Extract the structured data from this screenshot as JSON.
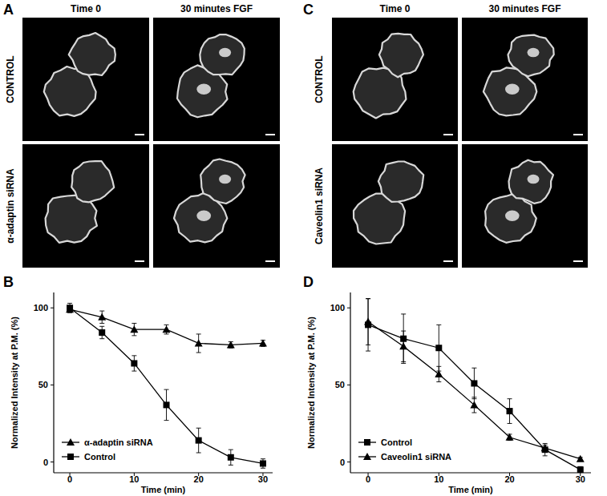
{
  "panels": [
    {
      "label": "A",
      "columns": [
        "Time 0",
        "30 minutes FGF"
      ],
      "rows": [
        "CONTROL",
        "α-adaptin siRNA"
      ]
    },
    {
      "label": "C",
      "columns": [
        "Time 0",
        "30 minutes FGF"
      ],
      "rows": [
        "CONTROL",
        "Caveolin1 siRNA"
      ]
    }
  ],
  "chart_data": [
    {
      "type": "line",
      "title": "B",
      "x_label": "Time (min)",
      "y_label": "Normalized Intensity at P.M. (%)",
      "x": [
        0,
        5,
        10,
        15,
        20,
        25,
        30
      ],
      "series": [
        {
          "name": "α-adaptin siRNA",
          "color": "#000000",
          "marker": "triangle",
          "line_style": "solid",
          "values": [
            99,
            94,
            86,
            86,
            77,
            76,
            77
          ],
          "errors": [
            2,
            4,
            4,
            3,
            6,
            2,
            2
          ]
        },
        {
          "name": "Control",
          "color": "#000000",
          "marker": "square",
          "line_style": "solid",
          "values": [
            100,
            84,
            64,
            37,
            14,
            3,
            -1
          ],
          "errors": [
            3,
            4,
            5,
            10,
            8,
            5,
            3
          ]
        }
      ],
      "xlim": [
        -2.5,
        31.5
      ],
      "xticks": [
        0,
        10,
        20,
        30
      ],
      "ylim": [
        -7,
        110
      ],
      "yticks": [
        0,
        50,
        100
      ],
      "grid": false,
      "legend": "lower left"
    },
    {
      "type": "line",
      "title": "D",
      "x_label": "Time (min)",
      "y_label": "Normalized Intensity at P.M. (%)",
      "x": [
        0,
        5,
        10,
        15,
        20,
        25,
        30
      ],
      "series": [
        {
          "name": "Control",
          "color": "#000000",
          "marker": "square",
          "line_style": "solid",
          "values": [
            89,
            80,
            74,
            51,
            33,
            8,
            -5
          ],
          "errors": [
            17,
            16,
            15,
            10,
            8,
            4,
            2
          ]
        },
        {
          "name": "Caveolin1 siRNA",
          "color": "#000000",
          "marker": "triangle",
          "line_style": "solid",
          "values": [
            91,
            75,
            57,
            37,
            16,
            9,
            2
          ],
          "errors": [
            15,
            10,
            5,
            5,
            2,
            2,
            1
          ]
        }
      ],
      "xlim": [
        -2.5,
        31.5
      ],
      "xticks": [
        0,
        10,
        20,
        30
      ],
      "ylim": [
        -7,
        110
      ],
      "yticks": [
        0,
        50,
        100
      ],
      "grid": false,
      "legend": "lower left"
    }
  ]
}
